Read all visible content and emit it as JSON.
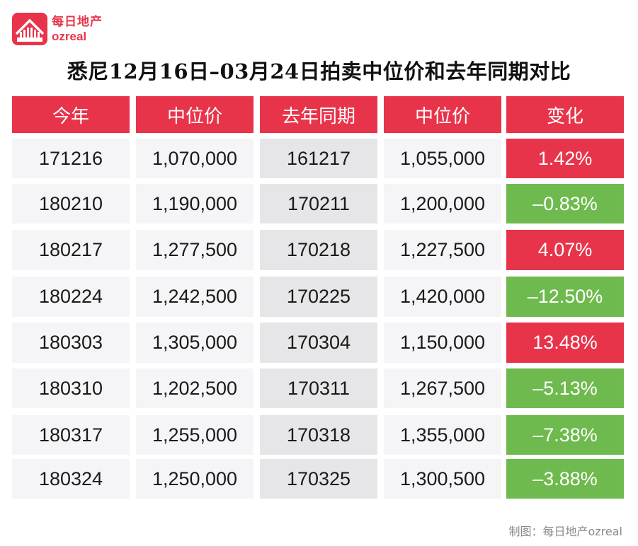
{
  "brand": {
    "name_cn": "每日地产",
    "name_en": "ozreal",
    "badge_text": "每日地产"
  },
  "title": "悉尼12月16日–03月24日拍卖中位价和去年同期对比",
  "table": {
    "headers": [
      "今年",
      "中位价",
      "去年同期",
      "中位价",
      "变化"
    ],
    "rows": [
      [
        "171216",
        "1,070,000",
        "161217",
        "1,055,000",
        "1.42%"
      ],
      [
        "180210",
        "1,190,000",
        "170211",
        "1,200,000",
        "–0.83%"
      ],
      [
        "180217",
        "1,277,500",
        "170218",
        "1,227,500",
        "4.07%"
      ],
      [
        "180224",
        "1,242,500",
        "170225",
        "1,420,000",
        "–12.50%"
      ],
      [
        "180303",
        "1,305,000",
        "170304",
        "1,150,000",
        "13.48%"
      ],
      [
        "180310",
        "1,202,500",
        "170311",
        "1,267,500",
        "–5.13%"
      ],
      [
        "180317",
        "1,255,000",
        "170318",
        "1,355,000",
        "–7.38%"
      ],
      [
        "180324",
        "1,250,000",
        "170325",
        "1,300,500",
        "–3.88%"
      ]
    ],
    "change_direction": [
      "up",
      "down",
      "up",
      "down",
      "up",
      "down",
      "down",
      "down"
    ]
  },
  "colors": {
    "accent_red": "#e8344a",
    "positive_green": "#6fba4e"
  },
  "footer": "制图：每日地产ozreal"
}
